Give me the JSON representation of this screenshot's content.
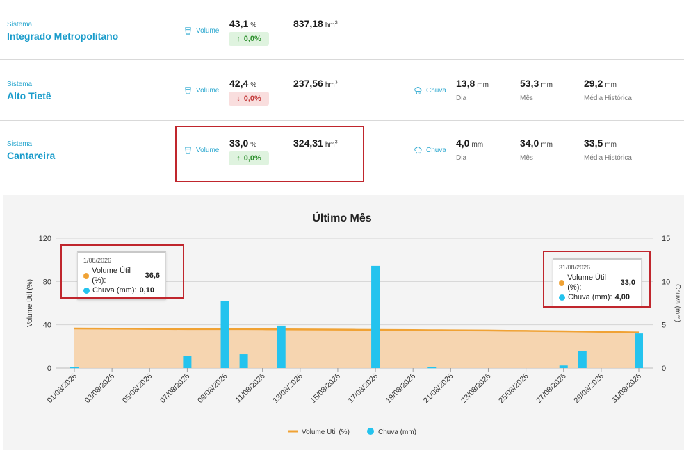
{
  "colors": {
    "volume_line": "#f0a234",
    "volume_fill": "#f6d2a8",
    "rain_bar": "#24c3ee",
    "accent": "#1a9ccb",
    "highlight": "#c0262d"
  },
  "systems": [
    {
      "label": "Sistema",
      "name": "Integrado Metropolitano",
      "volume_label": "Volume",
      "volume_percent": "43,1",
      "percent_unit": "%",
      "change_arrow": "↑",
      "change": "0,0%",
      "change_direction": "up",
      "volume_hm3": "837,18",
      "hm3_unit": "hm",
      "hm3_sup": "3"
    },
    {
      "label": "Sistema",
      "name": "Alto Tietê",
      "volume_label": "Volume",
      "volume_percent": "42,4",
      "percent_unit": "%",
      "change_arrow": "↓",
      "change": "0,0%",
      "change_direction": "down",
      "volume_hm3": "237,56",
      "hm3_unit": "hm",
      "hm3_sup": "3",
      "rain": {
        "label": "Chuva",
        "day": "13,8",
        "day_caption": "Dia",
        "month": "53,3",
        "month_caption": "Mês",
        "hist": "29,2",
        "hist_caption": "Média Histórica",
        "unit": "mm"
      }
    },
    {
      "label": "Sistema",
      "name": "Cantareira",
      "volume_label": "Volume",
      "volume_percent": "33,0",
      "percent_unit": "%",
      "change_arrow": "↑",
      "change": "0,0%",
      "change_direction": "up",
      "volume_hm3": "324,31",
      "hm3_unit": "hm",
      "hm3_sup": "3",
      "rain": {
        "label": "Chuva",
        "day": "4,0",
        "day_caption": "Dia",
        "month": "34,0",
        "month_caption": "Mês",
        "hist": "33,5",
        "hist_caption": "Média Histórica",
        "unit": "mm"
      }
    }
  ],
  "tooltips": [
    {
      "date": "1/08/2026",
      "volume_label": "Volume Útil (%):",
      "volume_value": "36,6",
      "rain_label": "Chuva (mm):",
      "rain_value": "0,10"
    },
    {
      "date": "31/08/2026",
      "volume_label": "Volume Útil (%):",
      "volume_value": "33,0",
      "rain_label": "Chuva (mm):",
      "rain_value": "4,00"
    }
  ],
  "chart_data": {
    "type": "bar",
    "title": "Último Mês",
    "ylabel": "Volume Útil (%)",
    "y2label": "Chuva (mm)",
    "ylim": [
      0,
      120
    ],
    "y2lim": [
      0,
      15
    ],
    "yticks": [
      "0",
      "40",
      "80",
      "120"
    ],
    "y2ticks": [
      "0",
      "5",
      "10",
      "15"
    ],
    "grid": true,
    "legend_position": "bottom",
    "x": [
      "01/08/2026",
      "02/08/2026",
      "03/08/2026",
      "04/08/2026",
      "05/08/2026",
      "06/08/2026",
      "07/08/2026",
      "08/08/2026",
      "09/08/2026",
      "10/08/2026",
      "11/08/2026",
      "12/08/2026",
      "13/08/2026",
      "14/08/2026",
      "15/08/2026",
      "16/08/2026",
      "17/08/2026",
      "18/08/2026",
      "19/08/2026",
      "20/08/2026",
      "21/08/2026",
      "22/08/2026",
      "23/08/2026",
      "24/08/2026",
      "25/08/2026",
      "26/08/2026",
      "27/08/2026",
      "28/08/2026",
      "29/08/2026",
      "30/08/2026",
      "31/08/2026"
    ],
    "xtick_labels": [
      "01/08/2026",
      "03/08/2026",
      "05/08/2026",
      "07/08/2026",
      "09/08/2026",
      "11/08/2026",
      "13/08/2026",
      "15/08/2026",
      "17/08/2026",
      "19/08/2026",
      "21/08/2026",
      "23/08/2026",
      "25/08/2026",
      "27/08/2026",
      "29/08/2026",
      "31/08/2026"
    ],
    "series": [
      {
        "name": "Volume Útil (%)",
        "kind": "area",
        "axis": "left",
        "values": [
          36.6,
          36.5,
          36.4,
          36.3,
          36.2,
          36.1,
          36.0,
          36.0,
          36.0,
          36.0,
          35.9,
          35.8,
          35.7,
          35.6,
          35.5,
          35.4,
          35.3,
          35.2,
          35.1,
          35.0,
          34.9,
          34.8,
          34.7,
          34.5,
          34.4,
          34.2,
          34.0,
          33.8,
          33.5,
          33.2,
          33.0
        ]
      },
      {
        "name": "Chuva (mm)",
        "kind": "bar",
        "axis": "right",
        "values": [
          0.1,
          0,
          0,
          0,
          0,
          0,
          1.4,
          0,
          7.7,
          1.6,
          0,
          4.9,
          0,
          0,
          0,
          0,
          11.8,
          0,
          0,
          0.1,
          0,
          0,
          0,
          0,
          0,
          0,
          0.3,
          2.0,
          0,
          0,
          4.0
        ]
      }
    ]
  }
}
